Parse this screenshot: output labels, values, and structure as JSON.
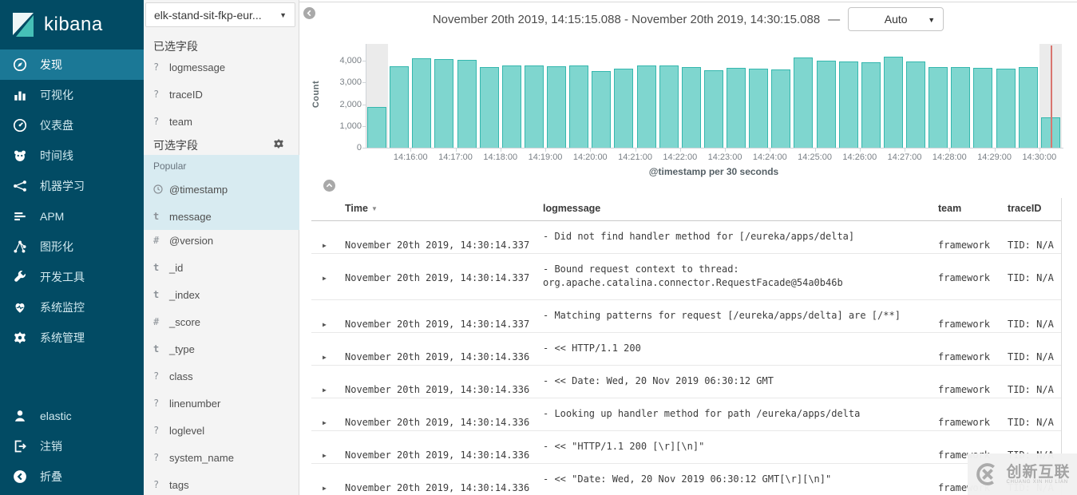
{
  "app": {
    "logo_text": "kibana"
  },
  "sidebar": {
    "items": [
      {
        "icon": "discover",
        "label": "发现",
        "active": true
      },
      {
        "icon": "visualize",
        "label": "可视化",
        "active": false
      },
      {
        "icon": "dashboard",
        "label": "仪表盘",
        "active": false
      },
      {
        "icon": "timelion",
        "label": "时间线",
        "active": false
      },
      {
        "icon": "ml",
        "label": "机器学习",
        "active": false
      },
      {
        "icon": "apm",
        "label": "APM",
        "active": false
      },
      {
        "icon": "graph",
        "label": "图形化",
        "active": false
      },
      {
        "icon": "devtools",
        "label": "开发工具",
        "active": false
      },
      {
        "icon": "monitoring",
        "label": "系统监控",
        "active": false
      },
      {
        "icon": "management",
        "label": "系统管理",
        "active": false
      }
    ],
    "footer_items": [
      {
        "icon": "user",
        "label": "elastic"
      },
      {
        "icon": "logout",
        "label": "注销"
      },
      {
        "icon": "collapse",
        "label": "折叠"
      }
    ]
  },
  "fields_panel": {
    "index_pattern": "elk-stand-sit-fkp-eur...",
    "selected_header": "已选字段",
    "selected_fields": [
      {
        "type": "q",
        "name": "logmessage"
      },
      {
        "type": "q",
        "name": "traceID"
      },
      {
        "type": "q",
        "name": "team"
      }
    ],
    "available_header": "可选字段",
    "popular_label": "Popular",
    "popular_fields": [
      {
        "type": "clock",
        "name": "@timestamp"
      },
      {
        "type": "t",
        "name": "message"
      }
    ],
    "other_fields": [
      {
        "type": "n",
        "name": "@version"
      },
      {
        "type": "t",
        "name": "_id"
      },
      {
        "type": "t",
        "name": "_index"
      },
      {
        "type": "n",
        "name": "_score"
      },
      {
        "type": "t",
        "name": "_type"
      },
      {
        "type": "q",
        "name": "class"
      },
      {
        "type": "q",
        "name": "linenumber"
      },
      {
        "type": "q",
        "name": "loglevel"
      },
      {
        "type": "q",
        "name": "system_name"
      },
      {
        "type": "q",
        "name": "tags"
      }
    ]
  },
  "header": {
    "time_range": "November 20th 2019, 14:15:15.088 - November 20th 2019, 14:30:15.088",
    "separator": "—",
    "interval_selected": "Auto"
  },
  "chart_data": {
    "type": "bar",
    "title": "",
    "ylabel": "Count",
    "xlabel": "@timestamp per 30 seconds",
    "ylim": [
      0,
      4500
    ],
    "yticks": [
      0,
      1000,
      2000,
      3000,
      4000
    ],
    "ytick_labels": [
      "0",
      "1,000",
      "2,000",
      "3,000",
      "4,000"
    ],
    "categories": [
      "14:15:00",
      "14:15:30",
      "14:16:00",
      "14:16:30",
      "14:17:00",
      "14:17:30",
      "14:18:00",
      "14:18:30",
      "14:19:00",
      "14:19:30",
      "14:20:00",
      "14:20:30",
      "14:21:00",
      "14:21:30",
      "14:22:00",
      "14:22:30",
      "14:23:00",
      "14:23:30",
      "14:24:00",
      "14:24:30",
      "14:25:00",
      "14:25:30",
      "14:26:00",
      "14:26:30",
      "14:27:00",
      "14:27:30",
      "14:28:00",
      "14:28:30",
      "14:29:00",
      "14:29:30",
      "14:30:00"
    ],
    "values": [
      1870,
      3750,
      4100,
      4070,
      4030,
      3700,
      3780,
      3780,
      3760,
      3790,
      3530,
      3630,
      3780,
      3780,
      3720,
      3560,
      3680,
      3650,
      3600,
      4150,
      4000,
      3980,
      3920,
      4180,
      3960,
      3700,
      3700,
      3660,
      3640,
      3700,
      1400
    ],
    "x_tick_labels": [
      "14:16:00",
      "14:17:00",
      "14:18:00",
      "14:19:00",
      "14:20:00",
      "14:21:00",
      "14:22:00",
      "14:23:00",
      "14:24:00",
      "14:25:00",
      "14:26:00",
      "14:27:00",
      "14:28:00",
      "14:29:00",
      "14:30:00"
    ],
    "partial_bucket_indices": [
      0,
      30
    ],
    "grid": false,
    "legend": "none",
    "colors": {
      "bar_fill": "#7fd6cf",
      "bar_border": "#35b7ae",
      "partial_band": "#ebebeb",
      "time_marker": "#d9756f"
    }
  },
  "table": {
    "columns": [
      {
        "label": "Time",
        "sorted": "desc"
      },
      {
        "label": "logmessage",
        "sorted": ""
      },
      {
        "label": "team",
        "sorted": ""
      },
      {
        "label": "traceID",
        "sorted": ""
      }
    ],
    "rows": [
      {
        "time": "November 20th 2019, 14:30:14.337",
        "logmessage": "- Did not find handler method for [/eureka/apps/delta]",
        "team": "framework",
        "traceID": "TID: N/A"
      },
      {
        "time": "November 20th 2019, 14:30:14.337",
        "logmessage": "- Bound request context to thread: org.apache.catalina.connector.RequestFacade@54a0b46b",
        "team": "framework",
        "traceID": "TID: N/A"
      },
      {
        "time": "November 20th 2019, 14:30:14.337",
        "logmessage": "- Matching patterns for request [/eureka/apps/delta] are [/**]",
        "team": "framework",
        "traceID": "TID: N/A"
      },
      {
        "time": "November 20th 2019, 14:30:14.336",
        "logmessage": "- << HTTP/1.1 200",
        "team": "framework",
        "traceID": "TID: N/A"
      },
      {
        "time": "November 20th 2019, 14:30:14.336",
        "logmessage": "- << Date: Wed, 20 Nov 2019 06:30:12 GMT",
        "team": "framework",
        "traceID": "TID: N/A"
      },
      {
        "time": "November 20th 2019, 14:30:14.336",
        "logmessage": "- Looking up handler method for path /eureka/apps/delta",
        "team": "framework",
        "traceID": "TID: N/A"
      },
      {
        "time": "November 20th 2019, 14:30:14.336",
        "logmessage": "-  << \"HTTP/1.1 200 [\\r][\\n]\"",
        "team": "framework",
        "traceID": "TID: N/A"
      },
      {
        "time": "November 20th 2019, 14:30:14.336",
        "logmessage": "-  << \"Date: Wed, 20 Nov 2019 06:30:12 GMT[\\r][\\n]\"",
        "team": "framework",
        "traceID": "TID: N/A"
      }
    ]
  },
  "watermark": {
    "text": "创新互联",
    "subtext": "CHUANG XIN HU LIAN"
  }
}
